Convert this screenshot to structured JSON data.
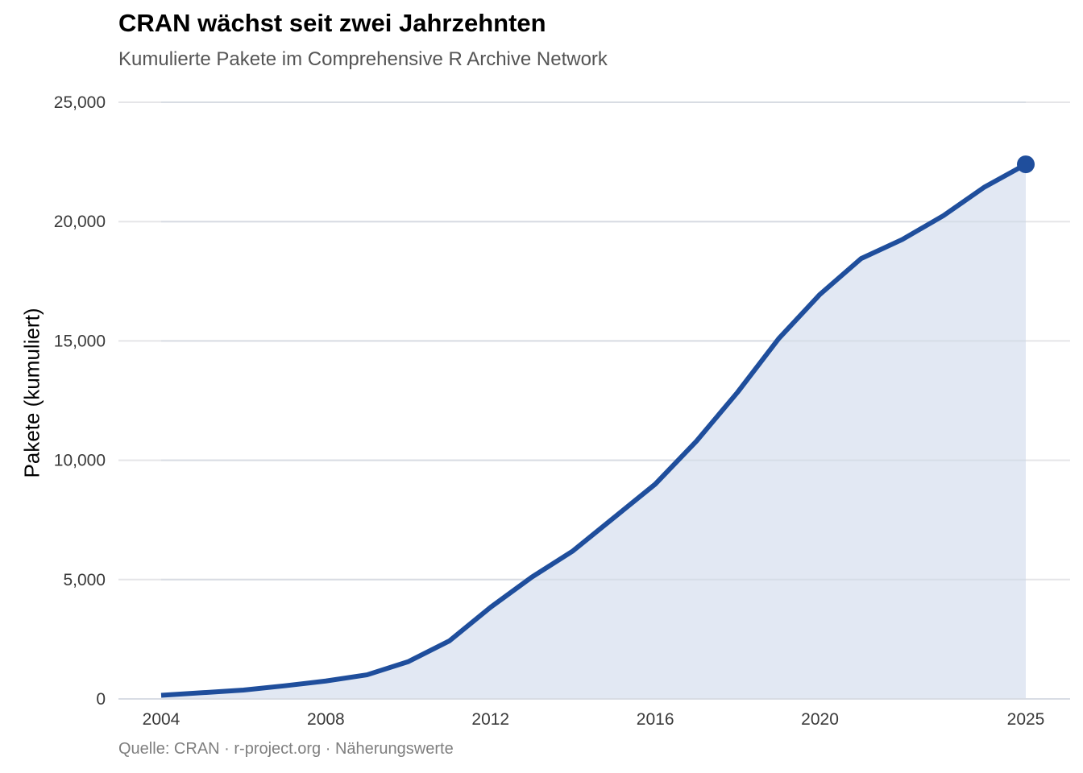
{
  "chart_data": {
    "type": "area",
    "title": "CRAN wächst seit zwei Jahrzehnten",
    "subtitle": "Kumulierte Pakete im Comprehensive R Archive Network",
    "caption": "Quelle: CRAN · r-project.org · Näherungswerte",
    "xlabel": "",
    "ylabel": "Pakete (kumuliert)",
    "x": [
      2004,
      2006,
      2007,
      2008,
      2009,
      2010,
      2011,
      2012,
      2013,
      2014,
      2015,
      2016,
      2017,
      2018,
      2019,
      2020,
      2021,
      2022,
      2023,
      2024,
      2025
    ],
    "series": [
      {
        "name": "Pakete (kumuliert)",
        "values": [
          150,
          370,
          550,
          750,
          1010,
          1560,
          2430,
          3840,
          5100,
          6200,
          7600,
          9000,
          10800,
          12850,
          15100,
          16950,
          18450,
          19250,
          20250,
          21450,
          22400
        ],
        "color": "#1f4e9c",
        "fill": "#e2e8f3"
      }
    ],
    "highlight_last_point": true,
    "xlim": [
      2004,
      2025
    ],
    "ylim": [
      0,
      25000
    ],
    "xticks": [
      2004,
      2008,
      2012,
      2016,
      2020,
      2025
    ],
    "xtick_labels": [
      "2004",
      "2008",
      "2012",
      "2016",
      "2020",
      "2025"
    ],
    "yticks": [
      0,
      5000,
      10000,
      15000,
      20000,
      25000
    ],
    "ytick_labels": [
      "0",
      "5,000",
      "10,000",
      "15,000",
      "20,000",
      "25,000"
    ],
    "grid": "horizontal",
    "legend": "none",
    "colors": {
      "line": "#1f4e9c",
      "fill": "#e2e8f3",
      "grid": "#e5e5e8"
    }
  }
}
